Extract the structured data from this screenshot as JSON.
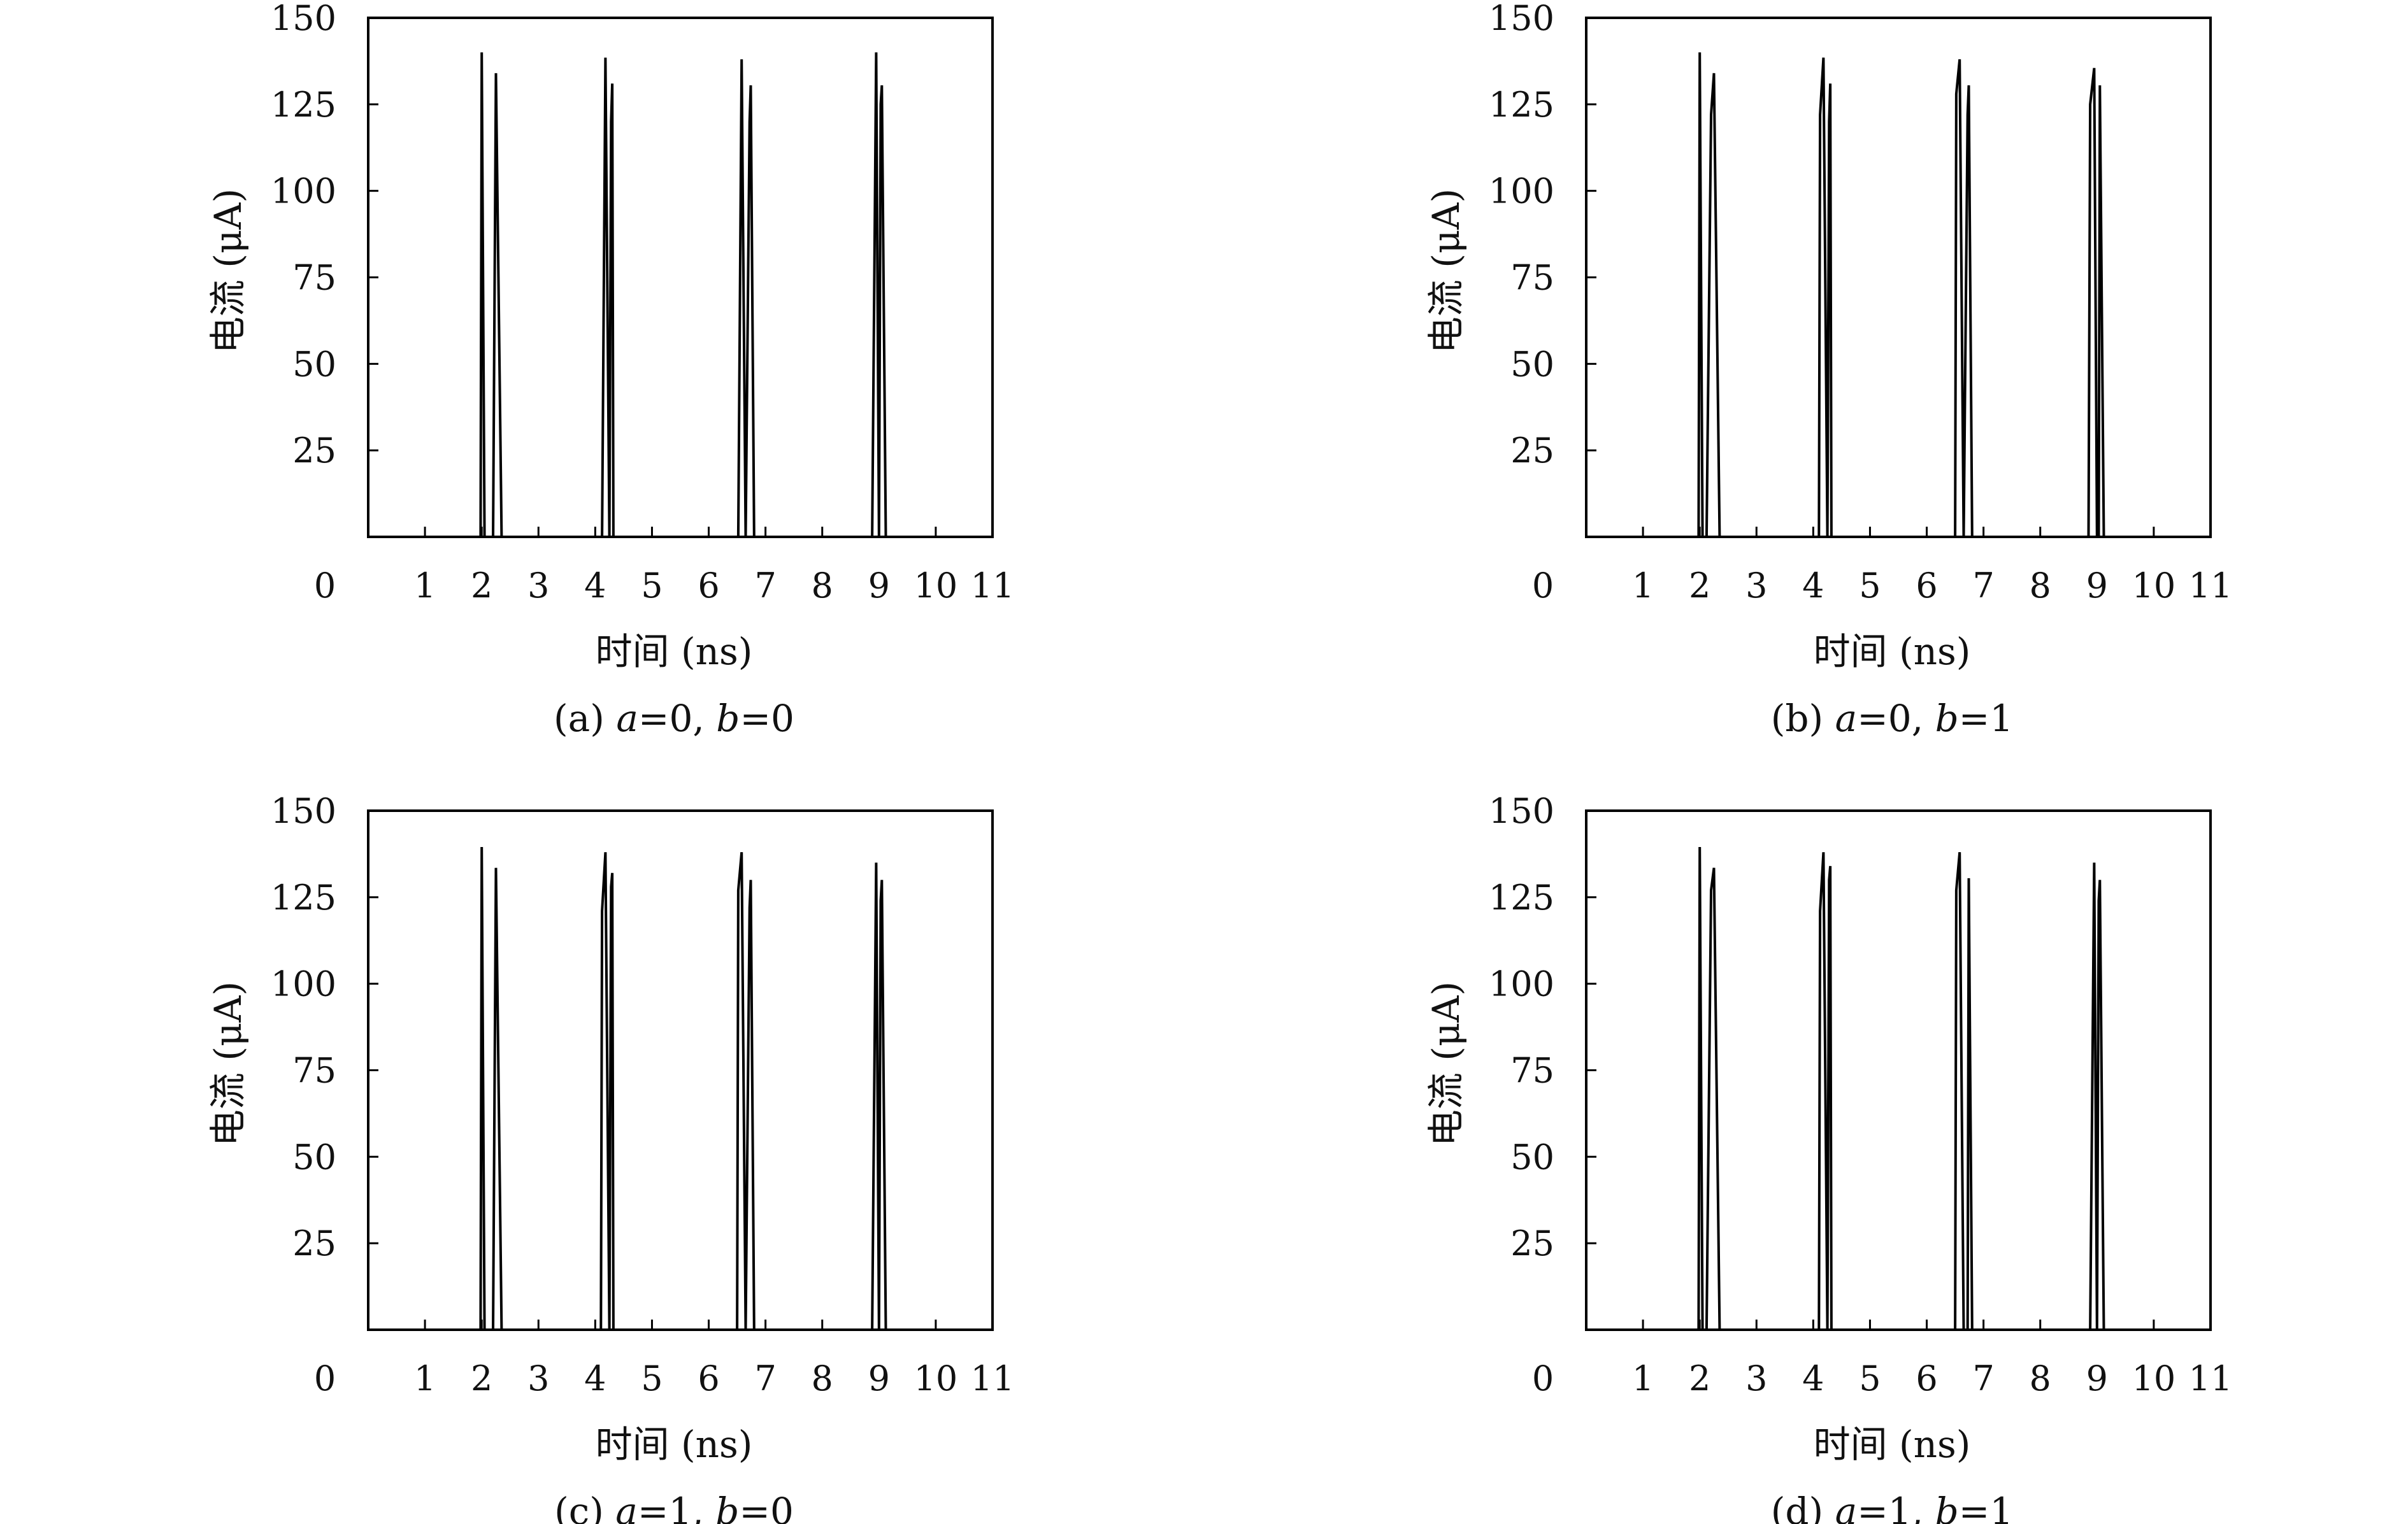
{
  "chart_data": [
    {
      "type": "line",
      "caption": {
        "prefix": "(a) ",
        "var_a": "a",
        "val_a": "=0, ",
        "var_b": "b",
        "val_b": "=0"
      },
      "xlabel": "时间 (ns)",
      "ylabel": "电流 (μA)",
      "xlim": [
        0,
        11
      ],
      "ylim": [
        0,
        150
      ],
      "x_ticks": [
        0,
        1,
        2,
        3,
        4,
        5,
        6,
        7,
        8,
        9,
        10,
        11
      ],
      "y_ticks": [
        25,
        50,
        75,
        100,
        125,
        150
      ],
      "origin_label": "0",
      "grid": false,
      "series": [
        {
          "x": [
            0,
            1.98,
            2.0,
            2.05,
            2.12,
            2.2,
            2.25,
            2.35,
            4.1,
            4.12,
            4.18,
            4.25,
            4.28,
            4.3,
            4.32,
            4.38,
            6.5,
            6.52,
            6.58,
            6.65,
            6.72,
            6.74,
            6.8,
            8.85,
            8.88,
            8.95,
            9.0,
            9.03,
            9.05,
            9.12,
            11
          ],
          "y": [
            0,
            0,
            140,
            0,
            0,
            0,
            134,
            0,
            0,
            0,
            138.5,
            0,
            120,
            131,
            0,
            0,
            0,
            0,
            138,
            0,
            120,
            130.5,
            0,
            0,
            0,
            140,
            0,
            125,
            130.5,
            0,
            0
          ]
        }
      ]
    },
    {
      "type": "line",
      "caption": {
        "prefix": "(b) ",
        "var_a": "a",
        "val_a": "=0, ",
        "var_b": "b",
        "val_b": "=1"
      },
      "xlabel": "时间 (ns)",
      "ylabel": "电流 (μA)",
      "xlim": [
        0,
        11
      ],
      "ylim": [
        0,
        150
      ],
      "x_ticks": [
        0,
        1,
        2,
        3,
        4,
        5,
        6,
        7,
        8,
        9,
        10,
        11
      ],
      "y_ticks": [
        25,
        50,
        75,
        100,
        125,
        150
      ],
      "origin_label": "0",
      "grid": false,
      "series": [
        {
          "x": [
            0,
            1.98,
            2.0,
            2.05,
            2.12,
            2.2,
            2.25,
            2.35,
            4.1,
            4.12,
            4.18,
            4.25,
            4.28,
            4.3,
            4.32,
            4.38,
            6.5,
            6.52,
            6.58,
            6.65,
            6.72,
            6.74,
            6.8,
            8.85,
            8.88,
            8.95,
            9.0,
            9.03,
            9.05,
            9.12,
            11
          ],
          "y": [
            0,
            0,
            140,
            0,
            0,
            122,
            134,
            0,
            0,
            122,
            138.5,
            0,
            120,
            131,
            0,
            0,
            0,
            128,
            138,
            0,
            122,
            130.5,
            0,
            0,
            125,
            135.5,
            0,
            0,
            130.5,
            0,
            0
          ]
        }
      ]
    },
    {
      "type": "line",
      "caption": {
        "prefix": "(c) ",
        "var_a": "a",
        "val_a": "=1, ",
        "var_b": "b",
        "val_b": "=0"
      },
      "xlabel": "时间 (ns)",
      "ylabel": "电流 (μA)",
      "xlim": [
        0,
        11
      ],
      "ylim": [
        0,
        150
      ],
      "x_ticks": [
        0,
        1,
        2,
        3,
        4,
        5,
        6,
        7,
        8,
        9,
        10,
        11
      ],
      "y_ticks": [
        25,
        50,
        75,
        100,
        125,
        150
      ],
      "origin_label": "0",
      "grid": false,
      "series": [
        {
          "x": [
            0,
            1.98,
            2.0,
            2.05,
            2.12,
            2.2,
            2.25,
            2.35,
            4.1,
            4.12,
            4.18,
            4.25,
            4.28,
            4.3,
            4.32,
            4.38,
            6.5,
            6.52,
            6.58,
            6.65,
            6.72,
            6.74,
            6.8,
            8.85,
            8.88,
            8.95,
            9.0,
            9.03,
            9.05,
            9.12,
            11
          ],
          "y": [
            0,
            0,
            139.5,
            0,
            0,
            0,
            133.5,
            0,
            0,
            121,
            138,
            0,
            128,
            132,
            0,
            0,
            0,
            127,
            138,
            0,
            122,
            130,
            0,
            0,
            0,
            135,
            0,
            124,
            130,
            0,
            0
          ]
        }
      ]
    },
    {
      "type": "line",
      "caption": {
        "prefix": "(d) ",
        "var_a": "a",
        "val_a": "=1, ",
        "var_b": "b",
        "val_b": "=1"
      },
      "xlabel": "时间 (ns)",
      "ylabel": "电流 (μA)",
      "xlim": [
        0,
        11
      ],
      "ylim": [
        0,
        150
      ],
      "x_ticks": [
        0,
        1,
        2,
        3,
        4,
        5,
        6,
        7,
        8,
        9,
        10,
        11
      ],
      "y_ticks": [
        25,
        50,
        75,
        100,
        125,
        150
      ],
      "origin_label": "0",
      "grid": false,
      "series": [
        {
          "x": [
            0,
            1.98,
            2.0,
            2.05,
            2.12,
            2.2,
            2.25,
            2.35,
            4.1,
            4.12,
            4.18,
            4.25,
            4.28,
            4.3,
            4.32,
            4.38,
            6.5,
            6.52,
            6.58,
            6.65,
            6.72,
            6.74,
            6.8,
            8.85,
            8.88,
            8.95,
            9.0,
            9.03,
            9.05,
            9.12,
            11
          ],
          "y": [
            0,
            0,
            139.5,
            0,
            0,
            127,
            133.5,
            0,
            0,
            121,
            138,
            0,
            130,
            134,
            0,
            0,
            0,
            127,
            138,
            0,
            0,
            130.5,
            0,
            0,
            0,
            135,
            0,
            124,
            130,
            0,
            0
          ]
        }
      ]
    }
  ]
}
